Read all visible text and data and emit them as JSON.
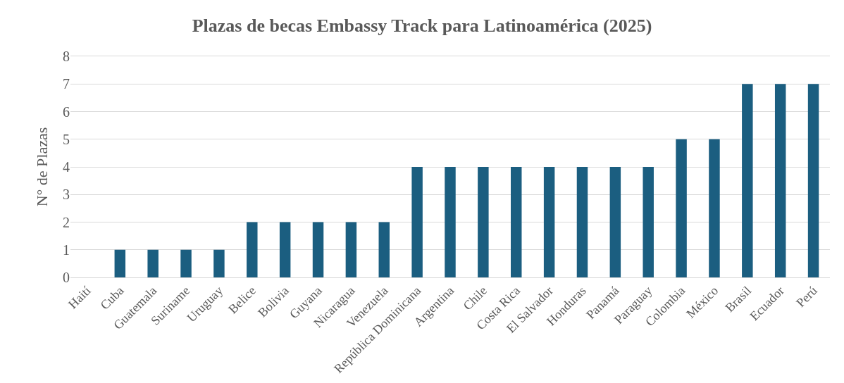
{
  "chart_data": {
    "type": "bar",
    "title": "Plazas de becas Embassy Track para Latinoamérica (2025)",
    "ylabel": "N° de Plazas",
    "categories": [
      "Haití",
      "Cuba",
      "Guatemala",
      "Suriname",
      "Uruguay",
      "Belice",
      "Bolivia",
      "Guyana",
      "Nicaragua",
      "Venezuela",
      "República Dominicana",
      "Argentina",
      "Chile",
      "Costa Rica",
      "El Salvador",
      "Honduras",
      "Panamá",
      "Paraguay",
      "Colombia",
      "México",
      "Brasil",
      "Ecuador",
      "Perú"
    ],
    "values": [
      0,
      1,
      1,
      1,
      1,
      2,
      2,
      2,
      2,
      2,
      4,
      4,
      4,
      4,
      4,
      4,
      4,
      4,
      5,
      5,
      7,
      7,
      7
    ],
    "color": "#1b5e80",
    "ylim": [
      0,
      8
    ],
    "yticks": [
      0,
      1,
      2,
      3,
      4,
      5,
      6,
      7,
      8
    ],
    "grid": "y"
  }
}
